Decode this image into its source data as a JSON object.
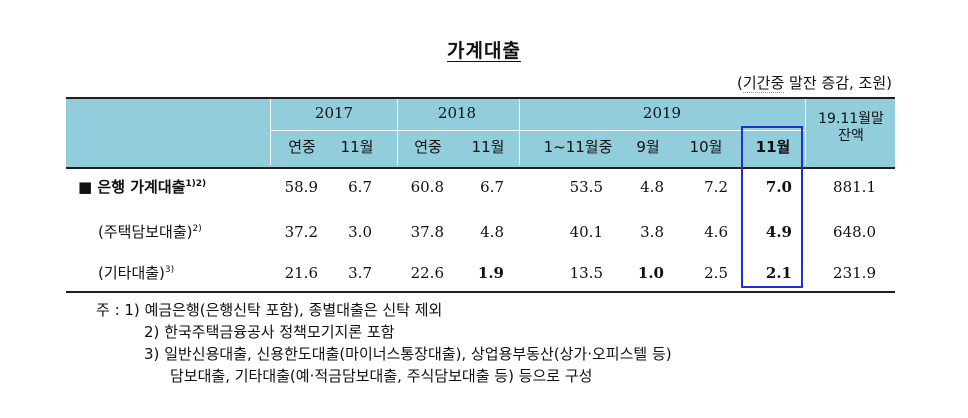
{
  "title": "가계대출",
  "unit": {
    "prefix": "(",
    "underlined": "기간중",
    "suffix": " 말잔 증감, 조원)"
  },
  "header": {
    "year_2017": "2017",
    "year_2018": "2018",
    "year_2019": "2019",
    "balance_label_line1": "19.11월말",
    "balance_label_line2": "잔액",
    "sub": {
      "c2017_annual": "연중",
      "c2017_nov": "11월",
      "c2018_annual": "연중",
      "c2018_nov": "11월",
      "c2019_jan_nov": "1~11월중",
      "c2019_sep": "9월",
      "c2019_oct": "10월",
      "c2019_nov": "11월"
    }
  },
  "rows": [
    {
      "label": "■ 은행 가계대출",
      "sup": "1)2)",
      "values": [
        "58.9",
        "6.7",
        "60.8",
        "6.7",
        "53.5",
        "4.8",
        "7.2",
        "7.0",
        "881.1"
      ]
    },
    {
      "label": "(주택담보대출)",
      "sup": "2)",
      "values": [
        "37.2",
        "3.0",
        "37.8",
        "4.8",
        "40.1",
        "3.8",
        "4.6",
        "4.9",
        "648.0"
      ]
    },
    {
      "label": "(기타대출)",
      "sup": "3)",
      "values": [
        "21.6",
        "3.7",
        "22.6",
        "1.9",
        "13.5",
        "1.0",
        "2.5",
        "2.1",
        "231.9"
      ]
    }
  ],
  "notes": {
    "prefix": "주 : ",
    "n1_num": "1)",
    "n1": "예금은행(은행신탁 포함), 종별대출은 신탁 제외",
    "n2_num": "2)",
    "n2": "한국주택금융공사 정책모기지론 포함",
    "n3_num": "3)",
    "n3_line1": "일반신용대출, 신용한도대출(마이너스통장대출), 상업용부동산(상가·오피스텔 등)",
    "n3_line2": "담보대출, 기타대출(예·적금담보대출, 주식담보대출 등) 등으로 구성"
  }
}
